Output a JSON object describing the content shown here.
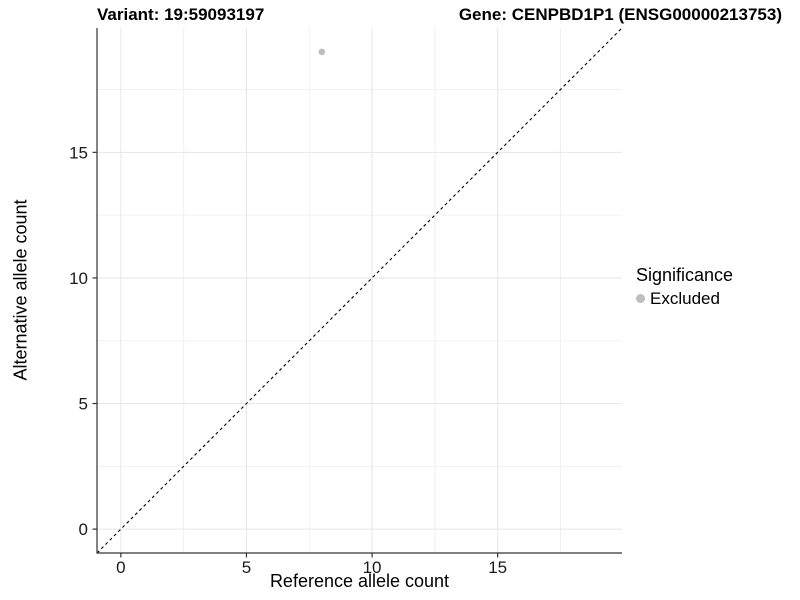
{
  "header": {
    "title_left": "Variant: 19:59093197",
    "title_right": "Gene: CENPBD1P1 (ENSG00000213753)"
  },
  "chart_data": {
    "type": "scatter",
    "title_left": "Variant: 19:59093197",
    "title_right": "Gene: CENPBD1P1 (ENSG00000213753)",
    "xlabel": "Reference allele count",
    "ylabel": "Alternative allele count",
    "xlim": [
      -0.95,
      19.95
    ],
    "ylim": [
      -0.95,
      19.95
    ],
    "x_major_ticks": [
      0,
      5,
      10,
      15
    ],
    "y_major_ticks": [
      0,
      5,
      10,
      15
    ],
    "x_minor_ticks": [
      2.5,
      7.5,
      12.5,
      17.5
    ],
    "y_minor_ticks": [
      2.5,
      7.5,
      12.5,
      17.5
    ],
    "x_tick_labels": [
      "0",
      "5",
      "10",
      "15"
    ],
    "y_tick_labels": [
      "0",
      "5",
      "10",
      "15"
    ],
    "grid": "major+minor",
    "series": [
      {
        "name": "Excluded",
        "color": "#bebebe",
        "points": [
          {
            "x": 8,
            "y": 19
          }
        ]
      }
    ],
    "reference_line": {
      "type": "identity",
      "slope": 1,
      "intercept": 0,
      "style": "dashed",
      "color": "#000000"
    },
    "legend": {
      "title": "Significance",
      "position": "right",
      "items": [
        {
          "label": "Excluded",
          "color": "#bebebe"
        }
      ]
    }
  },
  "colors": {
    "background": "#ffffff",
    "grid_major": "#e6e6e6",
    "grid_minor": "#f0f0f0",
    "axis_line": "#333333",
    "tick_mark": "#333333",
    "tick_label": "#1a1a1a",
    "point": "#bebebe"
  }
}
